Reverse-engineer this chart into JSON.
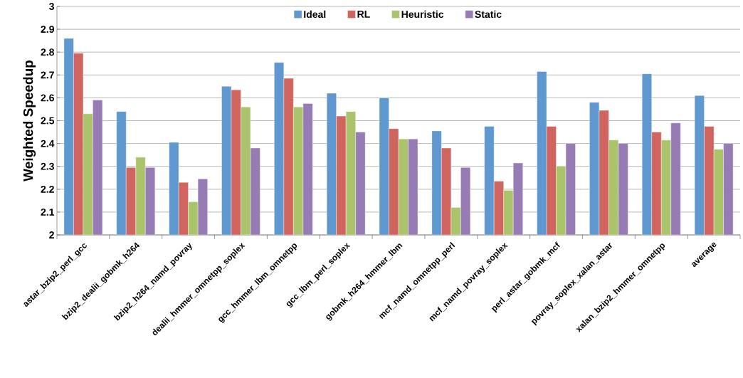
{
  "chart_data": {
    "type": "bar",
    "ylabel": "Weighted Speedup",
    "categories": [
      "astar_bzip2_perl_gcc",
      "bzip2_dealii_gobmk_h264",
      "bzip2_h264_namd_povray",
      "dealii_hmmer_omnetpp_soplex",
      "gcc_hmmer_lbm_omnetpp",
      "gcc_lbm_perl_soplex",
      "gobmk_h264_hmmer_lbm",
      "mcf_namd_omnetpp_perl",
      "mcf_namd_povray_soplex",
      "perl_astar_gobmk_mcf",
      "povray_soplex_xalan_astar",
      "xalan_bzip2_hmmer_omnetpp",
      "average"
    ],
    "series": [
      {
        "name": "Ideal",
        "color": "#5f97cf",
        "values": [
          2.86,
          2.54,
          2.405,
          2.65,
          2.755,
          2.62,
          2.6,
          2.455,
          2.475,
          2.715,
          2.58,
          2.705,
          2.61
        ]
      },
      {
        "name": "RL",
        "color": "#d0645e",
        "values": [
          2.795,
          2.295,
          2.23,
          2.635,
          2.685,
          2.52,
          2.465,
          2.38,
          2.235,
          2.475,
          2.545,
          2.45,
          2.475
        ]
      },
      {
        "name": "Heuristic",
        "color": "#abc46b",
        "values": [
          2.53,
          2.34,
          2.145,
          2.56,
          2.56,
          2.54,
          2.42,
          2.12,
          2.195,
          2.3,
          2.415,
          2.415,
          2.375
        ]
      },
      {
        "name": "Static",
        "color": "#967bb4",
        "values": [
          2.59,
          2.295,
          2.245,
          2.38,
          2.575,
          2.45,
          2.42,
          2.295,
          2.315,
          2.4,
          2.4,
          2.49,
          2.4
        ]
      }
    ],
    "ylim": [
      2,
      3
    ],
    "yticks": [
      2,
      2.1,
      2.2,
      2.3,
      2.4,
      2.5,
      2.6,
      2.7,
      2.8,
      2.9,
      3
    ],
    "grid": "y",
    "legend": "top"
  }
}
